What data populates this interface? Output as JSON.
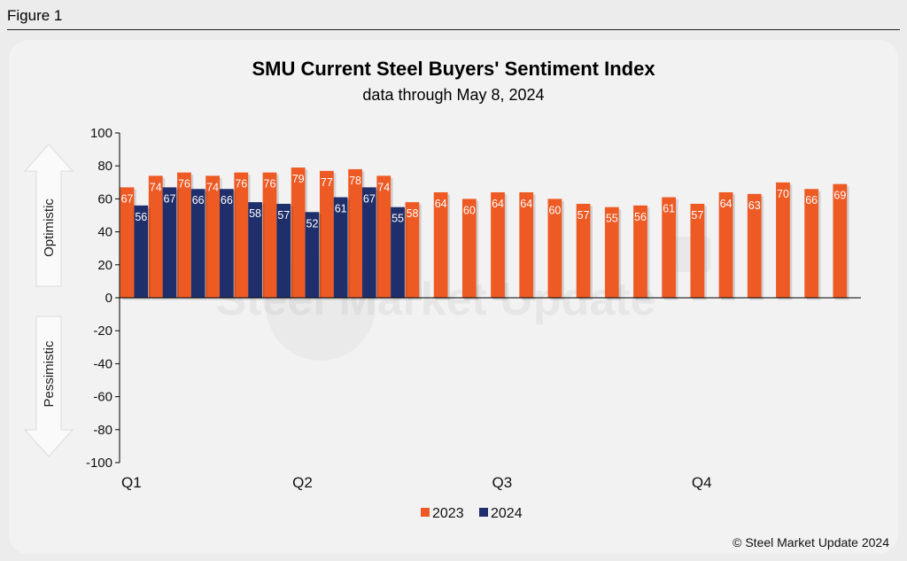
{
  "figure_label": "Figure 1",
  "copyright": "© Steel Market Update 2024",
  "watermark_text": "Steel Market Update",
  "colors": {
    "series_2023": "#ee5a24",
    "series_2024": "#1f2f6b",
    "background": "#ececec"
  },
  "arrows": {
    "up_label": "Optimistic",
    "down_label": "Pessimistic"
  },
  "chart_data": {
    "type": "bar",
    "title": "SMU Current Steel Buyers' Sentiment Index",
    "subtitle": "data through May 8, 2024",
    "ylim": [
      -100,
      100
    ],
    "yticks": [
      100,
      80,
      60,
      40,
      20,
      0,
      -20,
      -40,
      -60,
      -80,
      -100
    ],
    "grid": false,
    "legend_position": "bottom",
    "x_group_labels": [
      {
        "label": "Q1",
        "start_index": 0
      },
      {
        "label": "Q2",
        "start_index": 6
      },
      {
        "label": "Q3",
        "start_index": 13
      },
      {
        "label": "Q4",
        "start_index": 20
      }
    ],
    "series": [
      {
        "name": "2023",
        "values": [
          67,
          74,
          76,
          74,
          76,
          76,
          79,
          77,
          78,
          74,
          58,
          64,
          60,
          64,
          64,
          60,
          57,
          55,
          56,
          61,
          57,
          64,
          63,
          70,
          66,
          69
        ]
      },
      {
        "name": "2024",
        "values": [
          56,
          67,
          66,
          66,
          58,
          57,
          52,
          61,
          67,
          55
        ]
      }
    ]
  }
}
